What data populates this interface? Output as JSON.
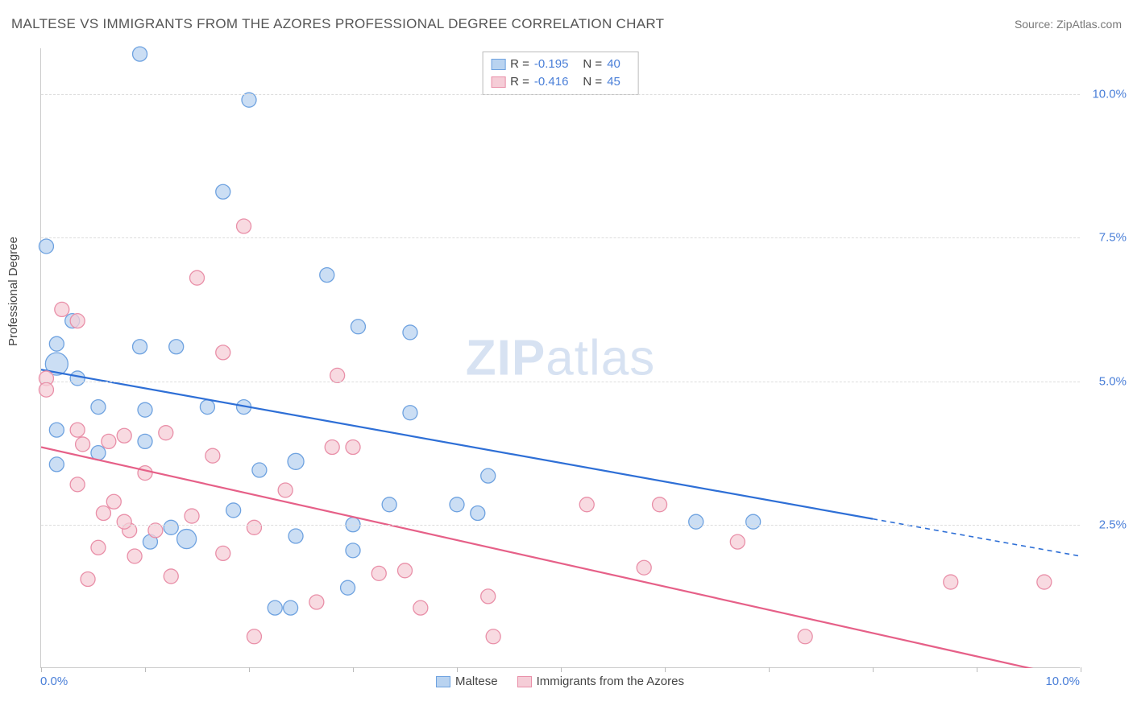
{
  "title": "MALTESE VS IMMIGRANTS FROM THE AZORES PROFESSIONAL DEGREE CORRELATION CHART",
  "source": "Source: ZipAtlas.com",
  "ylabel": "Professional Degree",
  "watermark_bold": "ZIP",
  "watermark_light": "atlas",
  "xaxis": {
    "min_label": "0.0%",
    "max_label": "10.0%",
    "xlim": [
      0,
      10
    ],
    "ticks": [
      0,
      1,
      2,
      3,
      4,
      5,
      6,
      7,
      8,
      9,
      10
    ]
  },
  "yaxis": {
    "ylim": [
      0,
      10.8
    ],
    "ticks": [
      2.5,
      5.0,
      7.5,
      10.0
    ],
    "tick_labels": [
      "2.5%",
      "5.0%",
      "7.5%",
      "10.0%"
    ]
  },
  "background_color": "#ffffff",
  "grid_color": "#dddddd",
  "series": [
    {
      "key": "maltese",
      "label": "Maltese",
      "fill": "#b9d3f0",
      "stroke": "#6ea2e0",
      "line_color": "#2e6fd6",
      "R_label": "R =",
      "R_value": "-0.195",
      "N_label": "N =",
      "N_value": "40",
      "trend": {
        "x1": 0.0,
        "y1": 5.2,
        "x2_solid": 8.0,
        "y2_solid": 2.6,
        "x2_dash": 10.0,
        "y2_dash": 1.95
      },
      "points": [
        {
          "x": 0.95,
          "y": 10.7,
          "r": 9
        },
        {
          "x": 2.0,
          "y": 9.9,
          "r": 9
        },
        {
          "x": 1.75,
          "y": 8.3,
          "r": 9
        },
        {
          "x": 0.05,
          "y": 7.35,
          "r": 9
        },
        {
          "x": 2.75,
          "y": 6.85,
          "r": 9
        },
        {
          "x": 0.15,
          "y": 5.65,
          "r": 9
        },
        {
          "x": 0.15,
          "y": 5.3,
          "r": 14
        },
        {
          "x": 0.3,
          "y": 6.05,
          "r": 9
        },
        {
          "x": 0.95,
          "y": 5.6,
          "r": 9
        },
        {
          "x": 1.3,
          "y": 5.6,
          "r": 9
        },
        {
          "x": 3.05,
          "y": 5.95,
          "r": 9
        },
        {
          "x": 3.55,
          "y": 5.85,
          "r": 9
        },
        {
          "x": 0.35,
          "y": 5.05,
          "r": 9
        },
        {
          "x": 1.0,
          "y": 4.5,
          "r": 9
        },
        {
          "x": 1.6,
          "y": 4.55,
          "r": 9
        },
        {
          "x": 1.95,
          "y": 4.55,
          "r": 9
        },
        {
          "x": 3.55,
          "y": 4.45,
          "r": 9
        },
        {
          "x": 0.15,
          "y": 4.15,
          "r": 9
        },
        {
          "x": 1.05,
          "y": 2.2,
          "r": 9
        },
        {
          "x": 1.25,
          "y": 2.45,
          "r": 9
        },
        {
          "x": 1.4,
          "y": 2.25,
          "r": 12
        },
        {
          "x": 2.45,
          "y": 3.6,
          "r": 10
        },
        {
          "x": 2.1,
          "y": 3.45,
          "r": 9
        },
        {
          "x": 2.25,
          "y": 1.05,
          "r": 9
        },
        {
          "x": 2.4,
          "y": 1.05,
          "r": 9
        },
        {
          "x": 2.95,
          "y": 1.4,
          "r": 9
        },
        {
          "x": 3.0,
          "y": 2.05,
          "r": 9
        },
        {
          "x": 4.3,
          "y": 3.35,
          "r": 9
        },
        {
          "x": 4.0,
          "y": 2.85,
          "r": 9
        },
        {
          "x": 6.3,
          "y": 2.55,
          "r": 9
        },
        {
          "x": 6.85,
          "y": 2.55,
          "r": 9
        },
        {
          "x": 0.55,
          "y": 3.75,
          "r": 9
        },
        {
          "x": 1.85,
          "y": 2.75,
          "r": 9
        },
        {
          "x": 2.45,
          "y": 2.3,
          "r": 9
        },
        {
          "x": 3.35,
          "y": 2.85,
          "r": 9
        },
        {
          "x": 3.0,
          "y": 2.5,
          "r": 9
        },
        {
          "x": 1.0,
          "y": 3.95,
          "r": 9
        },
        {
          "x": 0.55,
          "y": 4.55,
          "r": 9
        },
        {
          "x": 4.2,
          "y": 2.7,
          "r": 9
        },
        {
          "x": 0.15,
          "y": 3.55,
          "r": 9
        }
      ]
    },
    {
      "key": "azores",
      "label": "Immigrants from the Azores",
      "fill": "#f5cdd7",
      "stroke": "#e98fa8",
      "line_color": "#e66088",
      "R_label": "R =",
      "R_value": "-0.416",
      "N_label": "N =",
      "N_value": "45",
      "trend": {
        "x1": 0.0,
        "y1": 3.85,
        "x2_solid": 10.0,
        "y2_solid": -0.2,
        "x2_dash": 10.0,
        "y2_dash": -0.2
      },
      "points": [
        {
          "x": 1.95,
          "y": 7.7,
          "r": 9
        },
        {
          "x": 1.5,
          "y": 6.8,
          "r": 9
        },
        {
          "x": 0.2,
          "y": 6.25,
          "r": 9
        },
        {
          "x": 0.35,
          "y": 6.05,
          "r": 9
        },
        {
          "x": 0.05,
          "y": 5.05,
          "r": 9
        },
        {
          "x": 0.05,
          "y": 4.85,
          "r": 9
        },
        {
          "x": 1.75,
          "y": 5.5,
          "r": 9
        },
        {
          "x": 2.85,
          "y": 5.1,
          "r": 9
        },
        {
          "x": 0.35,
          "y": 4.15,
          "r": 9
        },
        {
          "x": 0.4,
          "y": 3.9,
          "r": 9
        },
        {
          "x": 0.8,
          "y": 4.05,
          "r": 9
        },
        {
          "x": 0.65,
          "y": 3.95,
          "r": 9
        },
        {
          "x": 1.2,
          "y": 4.1,
          "r": 9
        },
        {
          "x": 1.65,
          "y": 3.7,
          "r": 9
        },
        {
          "x": 2.8,
          "y": 3.85,
          "r": 9
        },
        {
          "x": 3.0,
          "y": 3.85,
          "r": 9
        },
        {
          "x": 0.35,
          "y": 3.2,
          "r": 9
        },
        {
          "x": 0.6,
          "y": 2.7,
          "r": 9
        },
        {
          "x": 0.7,
          "y": 2.9,
          "r": 9
        },
        {
          "x": 0.85,
          "y": 2.4,
          "r": 9
        },
        {
          "x": 0.8,
          "y": 2.55,
          "r": 9
        },
        {
          "x": 1.1,
          "y": 2.4,
          "r": 9
        },
        {
          "x": 1.45,
          "y": 2.65,
          "r": 9
        },
        {
          "x": 2.05,
          "y": 2.45,
          "r": 9
        },
        {
          "x": 0.55,
          "y": 2.1,
          "r": 9
        },
        {
          "x": 0.9,
          "y": 1.95,
          "r": 9
        },
        {
          "x": 1.25,
          "y": 1.6,
          "r": 9
        },
        {
          "x": 1.75,
          "y": 2.0,
          "r": 9
        },
        {
          "x": 2.05,
          "y": 0.55,
          "r": 9
        },
        {
          "x": 2.65,
          "y": 1.15,
          "r": 9
        },
        {
          "x": 3.25,
          "y": 1.65,
          "r": 9
        },
        {
          "x": 3.5,
          "y": 1.7,
          "r": 9
        },
        {
          "x": 3.65,
          "y": 1.05,
          "r": 9
        },
        {
          "x": 4.3,
          "y": 1.25,
          "r": 9
        },
        {
          "x": 4.35,
          "y": 0.55,
          "r": 9
        },
        {
          "x": 5.25,
          "y": 2.85,
          "r": 9
        },
        {
          "x": 5.8,
          "y": 1.75,
          "r": 9
        },
        {
          "x": 5.95,
          "y": 2.85,
          "r": 9
        },
        {
          "x": 6.7,
          "y": 2.2,
          "r": 9
        },
        {
          "x": 7.35,
          "y": 0.55,
          "r": 9
        },
        {
          "x": 8.75,
          "y": 1.5,
          "r": 9
        },
        {
          "x": 9.65,
          "y": 1.5,
          "r": 9
        },
        {
          "x": 0.45,
          "y": 1.55,
          "r": 9
        },
        {
          "x": 1.0,
          "y": 3.4,
          "r": 9
        },
        {
          "x": 2.35,
          "y": 3.1,
          "r": 9
        }
      ]
    }
  ]
}
